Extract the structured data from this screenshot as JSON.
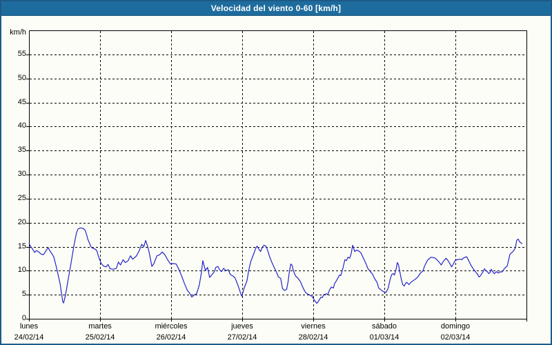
{
  "window": {
    "title": "Velocidad del viento 0-60 [km/h]"
  },
  "chart": {
    "unit_label": "km/h",
    "y_tick_labels": [
      "0",
      "5",
      "10",
      "15",
      "20",
      "25",
      "30",
      "35",
      "40",
      "45",
      "50",
      "55"
    ],
    "x_day_labels": [
      {
        "name": "lunes",
        "date": "24/02/14"
      },
      {
        "name": "martes",
        "date": "25/02/14"
      },
      {
        "name": "miércoles",
        "date": "26/02/14"
      },
      {
        "name": "jueves",
        "date": "27/02/14"
      },
      {
        "name": "viernes",
        "date": "28/02/14"
      },
      {
        "name": "sábado",
        "date": "01/03/14"
      },
      {
        "name": "domingo",
        "date": "02/03/14"
      }
    ],
    "colors": {
      "line": "#2323cb",
      "titlebar_bg": "#1e6c9e",
      "window_border": "#1c5a85",
      "background": "#fcfdf6",
      "grid": "#000000"
    }
  },
  "chart_data": {
    "type": "line",
    "title": "Velocidad del viento 0-60 [km/h]",
    "ylabel": "km/h",
    "ylim": [
      0,
      60
    ],
    "y_ticks": [
      0,
      5,
      10,
      15,
      20,
      25,
      30,
      35,
      40,
      45,
      50,
      55
    ],
    "x_unit": "hours from lunes 24/02/14 00:00",
    "xlim": [
      0,
      168
    ],
    "x_tick_hours": [
      0,
      24,
      48,
      72,
      96,
      120,
      144
    ],
    "x_tick_labels": [
      "lunes 24/02/14",
      "martes 25/02/14",
      "miércoles 26/02/14",
      "jueves 27/02/14",
      "viernes 28/02/14",
      "sábado 01/03/14",
      "domingo 02/03/14"
    ],
    "grid": "dashed",
    "legend": "none",
    "series": [
      {
        "name": "Velocidad del viento [km/h]",
        "color": "#2323cb",
        "points": [
          [
            0,
            15.8
          ],
          [
            0.4,
            15.2
          ],
          [
            1,
            14.7
          ],
          [
            1.9,
            13.8
          ],
          [
            2.5,
            14.2
          ],
          [
            3.3,
            13.9
          ],
          [
            4,
            13.5
          ],
          [
            4.8,
            13.3
          ],
          [
            5.3,
            13.7
          ],
          [
            6,
            14.4
          ],
          [
            6.5,
            14.8
          ],
          [
            7,
            14.2
          ],
          [
            7.9,
            13.4
          ],
          [
            8.4,
            12.8
          ],
          [
            8.9,
            11.6
          ],
          [
            9.4,
            10.4
          ],
          [
            10,
            8.7
          ],
          [
            10.5,
            7.3
          ],
          [
            11,
            5.2
          ],
          [
            11.4,
            3.6
          ],
          [
            11.7,
            3.3
          ],
          [
            12.1,
            4.3
          ],
          [
            12.6,
            5.9
          ],
          [
            13.1,
            7.7
          ],
          [
            13.6,
            9.5
          ],
          [
            14.1,
            11.2
          ],
          [
            14.6,
            13.1
          ],
          [
            15.1,
            14.9
          ],
          [
            15.6,
            16.6
          ],
          [
            16.1,
            18
          ],
          [
            16.6,
            18.7
          ],
          [
            17.4,
            18.9
          ],
          [
            18.3,
            18.8
          ],
          [
            19,
            18.4
          ],
          [
            19.4,
            17.6
          ],
          [
            19.9,
            16.5
          ],
          [
            20.4,
            15.8
          ],
          [
            20.9,
            15
          ],
          [
            21.4,
            14.7
          ],
          [
            22.3,
            14.5
          ],
          [
            22.9,
            14.2
          ],
          [
            23.4,
            13.1
          ],
          [
            24,
            12.1
          ],
          [
            24.4,
            11.5
          ],
          [
            25.1,
            11
          ],
          [
            26,
            10.8
          ],
          [
            26.7,
            11.3
          ],
          [
            27.4,
            10.4
          ],
          [
            28.5,
            10.3
          ],
          [
            29.5,
            10.5
          ],
          [
            30.2,
            11.8
          ],
          [
            30.9,
            11.2
          ],
          [
            31.8,
            12.3
          ],
          [
            32.5,
            11.7
          ],
          [
            33.4,
            12
          ],
          [
            34.3,
            13.1
          ],
          [
            35,
            12.4
          ],
          [
            36.2,
            13
          ],
          [
            37.1,
            14
          ],
          [
            38.1,
            15.5
          ],
          [
            38.8,
            15
          ],
          [
            39.4,
            16.3
          ],
          [
            40.1,
            15
          ],
          [
            40.6,
            13.8
          ],
          [
            41.5,
            10.9
          ],
          [
            42.2,
            11.5
          ],
          [
            43.2,
            13.1
          ],
          [
            44.1,
            13.3
          ],
          [
            45,
            13.9
          ],
          [
            45.9,
            13.3
          ],
          [
            46.9,
            12.2
          ],
          [
            47.8,
            11.4
          ],
          [
            48.7,
            11.5
          ],
          [
            49.7,
            11.4
          ],
          [
            50.6,
            10.3
          ],
          [
            51.5,
            9
          ],
          [
            52.4,
            7.5
          ],
          [
            53.4,
            6
          ],
          [
            54.3,
            5.3
          ],
          [
            55,
            4.5
          ],
          [
            55.9,
            5
          ],
          [
            56.6,
            5.2
          ],
          [
            57.5,
            7
          ],
          [
            58.2,
            9.5
          ],
          [
            58.7,
            12.1
          ],
          [
            59.6,
            10
          ],
          [
            60.3,
            10.7
          ],
          [
            61,
            8.6
          ],
          [
            62.6,
            9.8
          ],
          [
            63.1,
            10.7
          ],
          [
            63.8,
            10.9
          ],
          [
            64.5,
            10.1
          ],
          [
            65,
            9.8
          ],
          [
            65.7,
            10.5
          ],
          [
            66.6,
            10
          ],
          [
            67.3,
            10.2
          ],
          [
            68,
            9.2
          ],
          [
            68.9,
            8.9
          ],
          [
            69.6,
            8.5
          ],
          [
            70.3,
            7.4
          ],
          [
            71,
            6.2
          ],
          [
            71.7,
            4.9
          ],
          [
            71.9,
            4.7
          ],
          [
            72.6,
            6.3
          ],
          [
            73.6,
            7.9
          ],
          [
            74.2,
            10
          ],
          [
            74.9,
            11.9
          ],
          [
            75.9,
            13.5
          ],
          [
            76.6,
            14.7
          ],
          [
            77,
            15.1
          ],
          [
            77.7,
            14.4
          ],
          [
            78.2,
            14
          ],
          [
            78.9,
            15
          ],
          [
            79.4,
            15.3
          ],
          [
            80,
            15.1
          ],
          [
            80.5,
            14.4
          ],
          [
            81.2,
            13
          ],
          [
            81.9,
            11.9
          ],
          [
            82.8,
            10.7
          ],
          [
            83.5,
            9.8
          ],
          [
            84.2,
            8.7
          ],
          [
            85,
            8.4
          ],
          [
            85.6,
            6.3
          ],
          [
            86.3,
            5.9
          ],
          [
            87,
            6.1
          ],
          [
            87.5,
            7.7
          ],
          [
            87.9,
            9.6
          ],
          [
            88.4,
            11.4
          ],
          [
            88.9,
            11.1
          ],
          [
            89.3,
            10
          ],
          [
            90,
            8.9
          ],
          [
            90.9,
            8.4
          ],
          [
            91.7,
            7.7
          ],
          [
            92.3,
            6.8
          ],
          [
            92.8,
            6.1
          ],
          [
            93.5,
            5.4
          ],
          [
            94.2,
            5.1
          ],
          [
            94.7,
            5
          ],
          [
            95.1,
            4.8
          ],
          [
            95.6,
            4.7
          ],
          [
            96.3,
            3.9
          ],
          [
            96.7,
            3.6
          ],
          [
            97.2,
            3.2
          ],
          [
            97.9,
            3.8
          ],
          [
            98.6,
            4.5
          ],
          [
            99.1,
            4.4
          ],
          [
            99.5,
            5
          ],
          [
            100.5,
            5.2
          ],
          [
            100.9,
            5
          ],
          [
            101.4,
            5.9
          ],
          [
            102.1,
            6.6
          ],
          [
            102.8,
            6.4
          ],
          [
            103.2,
            7.3
          ],
          [
            103.9,
            8
          ],
          [
            104.9,
            9.1
          ],
          [
            105.3,
            9
          ],
          [
            106,
            10.5
          ],
          [
            106.7,
            12.3
          ],
          [
            107.2,
            12.1
          ],
          [
            107.7,
            12.8
          ],
          [
            108.3,
            12.6
          ],
          [
            108.8,
            13.5
          ],
          [
            109.3,
            15.3
          ],
          [
            110,
            14
          ],
          [
            110.7,
            14.3
          ],
          [
            111.4,
            14.1
          ],
          [
            112.1,
            13.7
          ],
          [
            113,
            12.5
          ],
          [
            113.7,
            11.6
          ],
          [
            114.4,
            10.5
          ],
          [
            115.3,
            9.8
          ],
          [
            116,
            9.3
          ],
          [
            116.7,
            8.4
          ],
          [
            117.6,
            7.5
          ],
          [
            118.1,
            6.4
          ],
          [
            118.9,
            6
          ],
          [
            119.5,
            5.7
          ],
          [
            120,
            5.6
          ],
          [
            120.6,
            5.5
          ],
          [
            121.3,
            6.4
          ],
          [
            122,
            8.3
          ],
          [
            122.5,
            9.2
          ],
          [
            123,
            9.4
          ],
          [
            123.4,
            9.1
          ],
          [
            123.9,
            10.1
          ],
          [
            124.4,
            11.7
          ],
          [
            124.8,
            11.2
          ],
          [
            125.3,
            9.6
          ],
          [
            125.7,
            8.3
          ],
          [
            126.2,
            7.1
          ],
          [
            126.7,
            6.8
          ],
          [
            127.1,
            7.3
          ],
          [
            127.6,
            7.6
          ],
          [
            128.3,
            7.1
          ],
          [
            129,
            7.6
          ],
          [
            129.9,
            8
          ],
          [
            130.6,
            8.3
          ],
          [
            131.3,
            8.7
          ],
          [
            132.3,
            9.6
          ],
          [
            133,
            9.9
          ],
          [
            133.6,
            11
          ],
          [
            134.6,
            12.2
          ],
          [
            135.7,
            12.8
          ],
          [
            136.9,
            12.7
          ],
          [
            137.6,
            12.4
          ],
          [
            138.5,
            11.8
          ],
          [
            139.2,
            11.2
          ],
          [
            139.9,
            11.9
          ],
          [
            140.8,
            12.6
          ],
          [
            141.5,
            12.1
          ],
          [
            142.2,
            11.4
          ],
          [
            142.7,
            10.8
          ],
          [
            143.2,
            11.3
          ],
          [
            143.9,
            12.1
          ],
          [
            144.6,
            12.3
          ],
          [
            145.5,
            12.4
          ],
          [
            146.2,
            12.3
          ],
          [
            146.6,
            12.6
          ],
          [
            147.3,
            12.8
          ],
          [
            147.8,
            12.9
          ],
          [
            148.5,
            12.1
          ],
          [
            149.2,
            11.2
          ],
          [
            150.1,
            10.3
          ],
          [
            150.8,
            9.8
          ],
          [
            151.3,
            9.4
          ],
          [
            152,
            8.7
          ],
          [
            152.4,
            8.9
          ],
          [
            152.9,
            9.4
          ],
          [
            153.4,
            9.8
          ],
          [
            153.8,
            10.4
          ],
          [
            154.3,
            10
          ],
          [
            154.8,
            9.8
          ],
          [
            155.2,
            9.4
          ],
          [
            155.7,
            9.6
          ],
          [
            156.1,
            10.3
          ],
          [
            156.6,
            9.8
          ],
          [
            157.1,
            9.4
          ],
          [
            157.5,
            9.6
          ],
          [
            158,
            9.8
          ],
          [
            158.5,
            9.5
          ],
          [
            159.2,
            9.8
          ],
          [
            159.6,
            9.7
          ],
          [
            160.1,
            10
          ],
          [
            160.6,
            10.5
          ],
          [
            161,
            10.7
          ],
          [
            161.5,
            11
          ],
          [
            162,
            12.3
          ],
          [
            162.4,
            13.4
          ],
          [
            162.9,
            13.7
          ],
          [
            163.3,
            13.9
          ],
          [
            163.8,
            14.3
          ],
          [
            164.3,
            14.8
          ],
          [
            164.7,
            16.3
          ],
          [
            165.2,
            16.6
          ],
          [
            165.7,
            16
          ],
          [
            166.1,
            15.8
          ],
          [
            166.6,
            15.6
          ]
        ]
      }
    ]
  }
}
